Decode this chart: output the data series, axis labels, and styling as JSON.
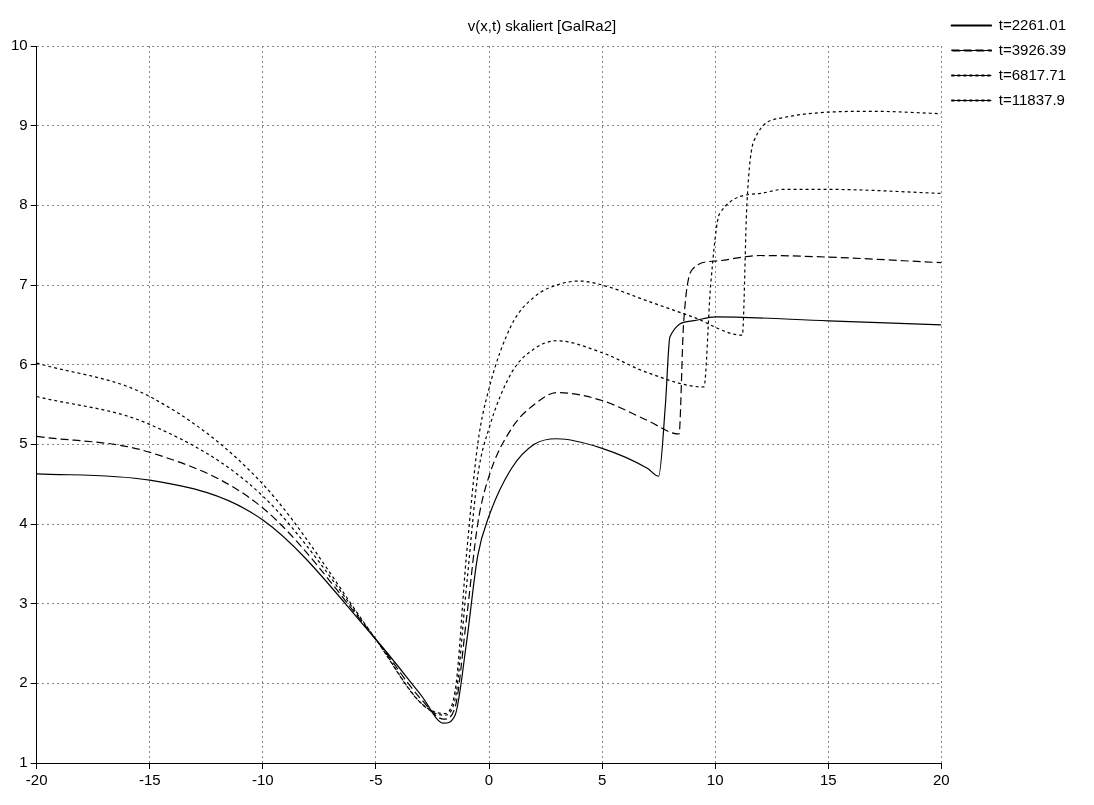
{
  "chart_data": {
    "type": "line",
    "title": "v(x,t) skaliert [GalRa2]",
    "xlim": [
      -20,
      20
    ],
    "xticks": [
      -20,
      -15,
      -10,
      -5,
      0,
      5,
      10,
      15,
      20
    ],
    "ylim": [
      1,
      10
    ],
    "yticks": [
      1,
      2,
      3,
      4,
      5,
      6,
      7,
      8,
      9,
      10
    ],
    "grid": true,
    "legend": "top right",
    "marker": "none",
    "series": [
      {
        "name": "t=2261.01",
        "color": "#000000",
        "line_style": "solid",
        "x": [
          -20,
          -15,
          -10,
          -5,
          -3,
          -2,
          -1.5,
          -1,
          -0.5,
          0,
          1,
          2,
          3,
          5,
          7,
          7.5,
          7.8,
          8,
          9,
          10,
          15,
          20
        ],
        "values": [
          4.63,
          4.55,
          4.05,
          2.55,
          1.85,
          1.5,
          1.6,
          2.5,
          3.6,
          4.1,
          4.7,
          5.0,
          5.07,
          4.95,
          4.7,
          4.6,
          5.5,
          6.35,
          6.55,
          6.6,
          6.55,
          6.5
        ]
      },
      {
        "name": "t=3926.39",
        "color": "#000000",
        "line_style": "dashed",
        "x": [
          -20,
          -15,
          -10,
          -5,
          -3,
          -2,
          -1.5,
          -1,
          -0.5,
          0,
          1,
          2,
          3,
          5,
          7,
          8.4,
          8.6,
          9,
          10,
          12,
          15,
          20
        ],
        "values": [
          5.1,
          4.9,
          4.2,
          2.55,
          1.8,
          1.55,
          1.7,
          2.8,
          4.0,
          4.6,
          5.2,
          5.5,
          5.65,
          5.55,
          5.3,
          5.13,
          6.5,
          7.2,
          7.3,
          7.37,
          7.35,
          7.28
        ]
      },
      {
        "name": "t=6817.71",
        "color": "#000000",
        "line_style": "dotted",
        "x": [
          -20,
          -15,
          -10,
          -5,
          -3,
          -2,
          -1.5,
          -1,
          -0.5,
          0,
          1,
          2,
          3,
          5,
          7,
          9.5,
          9.8,
          10.2,
          12,
          13,
          15,
          20
        ],
        "values": [
          5.6,
          5.25,
          4.35,
          2.55,
          1.75,
          1.6,
          1.8,
          3.2,
          4.6,
          5.2,
          5.9,
          6.2,
          6.3,
          6.15,
          5.9,
          5.72,
          7.0,
          7.9,
          8.15,
          8.2,
          8.2,
          8.15
        ]
      },
      {
        "name": "t=11837.9",
        "color": "#000000",
        "line_style": "dotted",
        "x": [
          -20,
          -15,
          -10,
          -5,
          -3,
          -2,
          -1.5,
          -1,
          -0.5,
          0,
          1,
          2,
          3,
          4,
          5,
          7,
          9,
          11.2,
          11.4,
          11.7,
          13,
          15,
          17,
          20
        ],
        "values": [
          6.02,
          5.6,
          4.5,
          2.55,
          1.75,
          1.62,
          1.9,
          3.6,
          5.0,
          5.7,
          6.5,
          6.85,
          7.0,
          7.05,
          7.0,
          6.8,
          6.6,
          6.37,
          8.0,
          8.8,
          9.1,
          9.17,
          9.18,
          9.15
        ]
      }
    ]
  }
}
